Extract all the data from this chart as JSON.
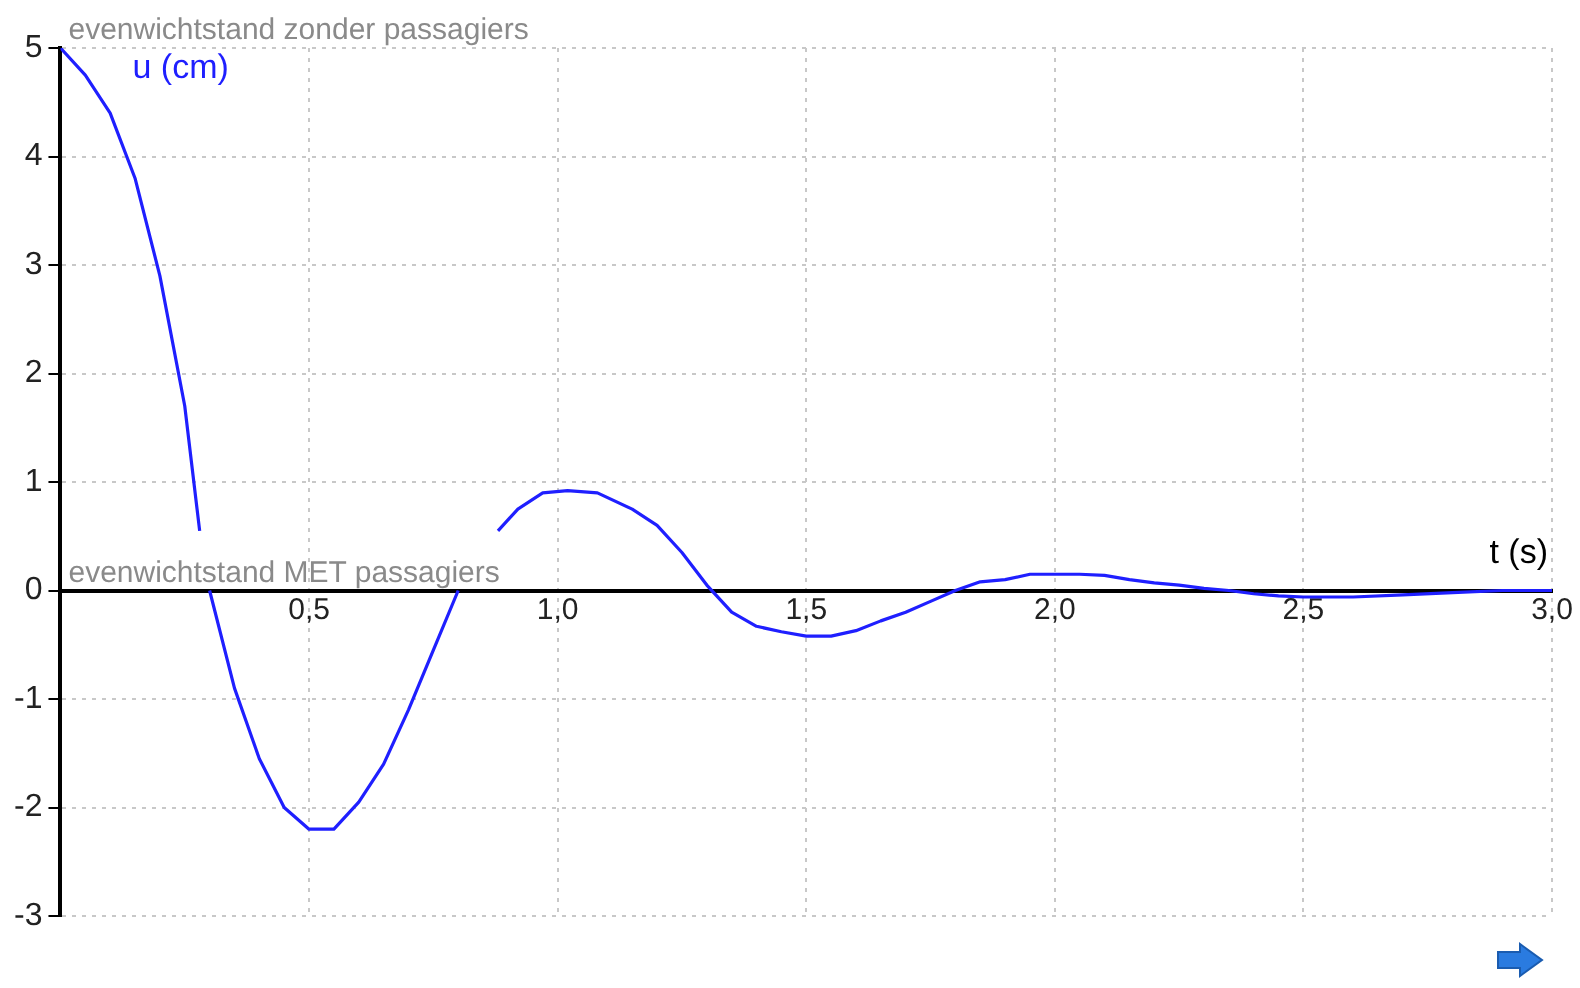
{
  "chart_data": {
    "type": "line",
    "xlabel": "t (s)",
    "ylabel": "u (cm)",
    "annotations": [
      "evenwichtstand zonder passagiers",
      "evenwichtstand MET passagiers"
    ],
    "series": [
      {
        "color": "#1f1fff",
        "x": [
          0,
          0.05,
          0.1,
          0.15,
          0.2,
          0.25,
          0.28,
          0.29,
          0.3,
          0.35,
          0.4,
          0.45,
          0.5,
          0.55,
          0.6,
          0.65,
          0.7,
          0.75,
          0.8,
          0.84,
          0.88,
          0.92,
          0.97,
          1.02,
          1.08,
          1.15,
          1.2,
          1.25,
          1.3,
          1.35,
          1.4,
          1.45,
          1.5,
          1.55,
          1.6,
          1.65,
          1.7,
          1.75,
          1.8,
          1.85,
          1.9,
          1.95,
          2.0,
          2.05,
          2.1,
          2.15,
          2.2,
          2.25,
          2.3,
          2.35,
          2.4,
          2.45,
          2.5,
          2.6,
          2.7,
          2.8,
          2.9,
          3.0
        ],
        "values": [
          5,
          4.75,
          4.4,
          3.8,
          2.9,
          1.7,
          0.55,
          null,
          0,
          -0.9,
          -1.55,
          -2.0,
          -2.2,
          -2.2,
          -1.95,
          -1.6,
          -1.1,
          -0.55,
          0,
          null,
          0.55,
          0.75,
          0.9,
          0.92,
          0.9,
          0.75,
          0.6,
          0.35,
          0.05,
          -0.2,
          -0.33,
          -0.38,
          -0.42,
          -0.42,
          -0.37,
          -0.28,
          -0.2,
          -0.1,
          0,
          0.08,
          0.1,
          0.15,
          0.15,
          0.15,
          0.14,
          0.1,
          0.07,
          0.05,
          0.02,
          0,
          -0.03,
          -0.05,
          -0.06,
          -0.06,
          -0.04,
          -0.02,
          0,
          0
        ]
      }
    ],
    "xlim": [
      0,
      3
    ],
    "ylim": [
      -3,
      5
    ],
    "xticks": [
      {
        "value": 0.5,
        "label": "0,5"
      },
      {
        "value": 1,
        "label": "1,0"
      },
      {
        "value": 1.5,
        "label": "1,5"
      },
      {
        "value": 2,
        "label": "2,0"
      },
      {
        "value": 2.5,
        "label": "2,5"
      },
      {
        "value": 3,
        "label": "3,0"
      }
    ],
    "yticks": [
      -3,
      -2,
      -1,
      0,
      1,
      2,
      3,
      4,
      5
    ],
    "grid": true,
    "legend": false,
    "marker": "none",
    "line_style": "solid"
  }
}
